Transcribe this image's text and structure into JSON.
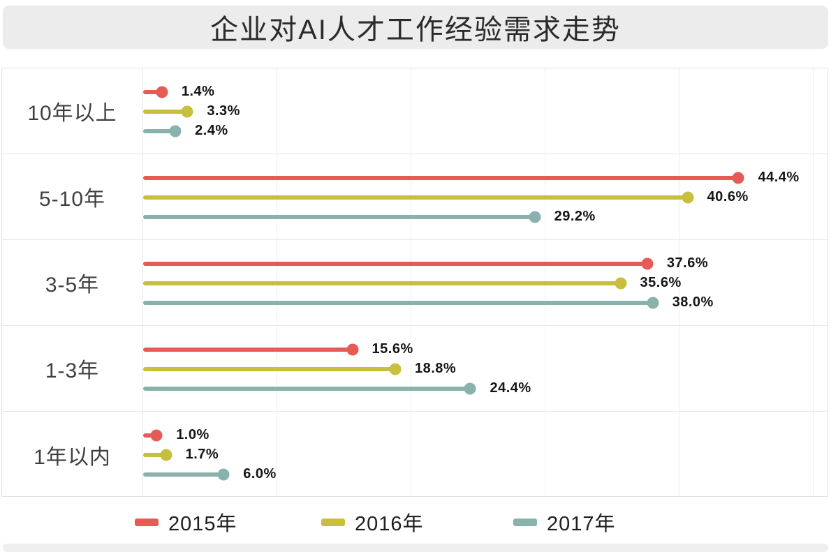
{
  "page": {
    "title": "企业对AI人才工作经验需求走势"
  },
  "chart_data": {
    "type": "bar",
    "variant": "horizontal-lollipop",
    "title": "企业对AI人才工作经验需求走势",
    "orientation": "horizontal",
    "categories": [
      "10年以上",
      "5-10年",
      "3-5年",
      "1-3年",
      "1年以内"
    ],
    "series": [
      {
        "name": "2015年",
        "color": "#e65b55",
        "values": [
          1.4,
          44.4,
          37.6,
          15.6,
          1.0
        ],
        "value_labels": [
          "1.4%",
          "44.4%",
          "37.6%",
          "15.6%",
          "1.0%"
        ]
      },
      {
        "name": "2016年",
        "color": "#c7bf3d",
        "values": [
          3.3,
          40.6,
          35.6,
          18.8,
          1.7
        ],
        "value_labels": [
          "3.3%",
          "40.6%",
          "35.6%",
          "18.8%",
          "1.7%"
        ]
      },
      {
        "name": "2017年",
        "color": "#8ab2ad",
        "values": [
          2.4,
          29.2,
          38.0,
          24.4,
          6.0
        ],
        "value_labels": [
          "2.4%",
          "29.2%",
          "38.0%",
          "24.4%",
          "6.0%"
        ]
      }
    ],
    "xlabel": "",
    "ylabel": "",
    "xlim": [
      0,
      51
    ],
    "gridlines": [
      0,
      10,
      20,
      30,
      40,
      50
    ],
    "grid": "on",
    "legend_position": "bottom",
    "value_label_format": "percent_one_decimal"
  },
  "colors": {
    "banner_bg": "#ececec",
    "plot_border": "#e2e2e2",
    "gridline": "#efefef",
    "row_separator": "#e7e7e7",
    "series_red": "#e65b55",
    "series_yellow": "#c7bf3d",
    "series_teal": "#8ab2ad",
    "category_label": "#3f3f3f",
    "value_label": "#151515",
    "legend_label": "#1f1f1f"
  }
}
